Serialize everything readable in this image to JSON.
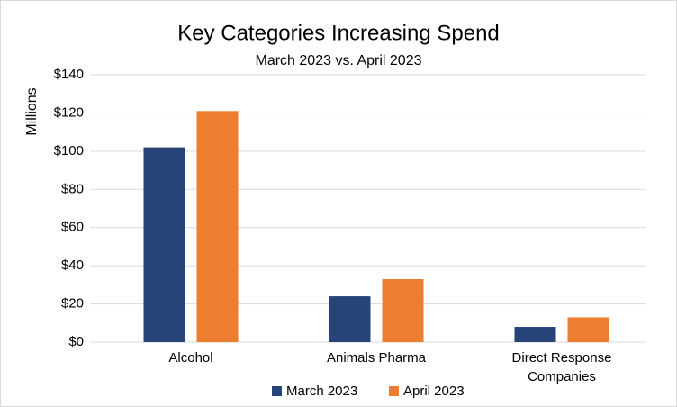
{
  "chart_data": {
    "type": "bar",
    "title": "Key Categories Increasing Spend",
    "subtitle": "March 2023 vs. April 2023",
    "y_label": "Millions",
    "categories": [
      "Alcohol",
      "Animals Pharma",
      "Direct Response Companies"
    ],
    "series": [
      {
        "name": "March 2023",
        "color": "#264478",
        "values": [
          102,
          24,
          8
        ]
      },
      {
        "name": "April 2023",
        "color": "#ed7d31",
        "values": [
          121,
          33,
          13
        ]
      }
    ],
    "ylim": [
      0,
      140
    ],
    "yticks": [
      {
        "value": 0,
        "label": "$0"
      },
      {
        "value": 20,
        "label": "$20"
      },
      {
        "value": 40,
        "label": "$40"
      },
      {
        "value": 60,
        "label": "$60"
      },
      {
        "value": 80,
        "label": "$80"
      },
      {
        "value": 100,
        "label": "$100"
      },
      {
        "value": 120,
        "label": "$120"
      },
      {
        "value": 140,
        "label": "$140"
      }
    ],
    "grid": true,
    "legend": "bottom"
  }
}
